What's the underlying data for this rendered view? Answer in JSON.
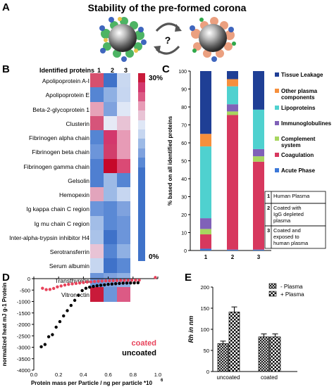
{
  "panel_a": {
    "letter": "A",
    "title": "Stability of the pre-formed corona",
    "question_mark": "?"
  },
  "panel_b": {
    "letter": "B",
    "header": "Identified proteins",
    "columns": [
      "1",
      "2",
      "3"
    ],
    "scale_top": "30%",
    "scale_bottom": "0%",
    "proteins": [
      "Apolipoprotein A-I",
      "Apolipoprotein E",
      "Beta-2-glycoprotein 1",
      "Clusterin",
      "Fibrinogen alpha chain",
      "Fibrinogen beta chain",
      "Fibrinogen gamma chain",
      "Gelsolin",
      "Hemopexin",
      "Ig kappa chain C region",
      "Ig mu chain C region",
      "Inter-alpha-trypsin inhibitor H4",
      "Serotransferrin",
      "Serum albumin",
      "Transthyretin",
      "Vitronectin"
    ],
    "heat_colors": [
      [
        "#d6506e",
        "#3f72c9",
        "#c9d8f0"
      ],
      [
        "#5585d3",
        "#8fb0e3",
        "#c6d6f0"
      ],
      [
        "#e6a2b8",
        "#7fa2de",
        "#dfe7f6"
      ],
      [
        "#d6547a",
        "#e6eaf6",
        "#e8c3d5"
      ],
      [
        "#5585d3",
        "#d3386d",
        "#e79bb6"
      ],
      [
        "#6c95da",
        "#d23e6c",
        "#e79bb6"
      ],
      [
        "#4f7fd1",
        "#c6082a",
        "#da4a75"
      ],
      [
        "#4f7fd1",
        "#9dbae6",
        "#5585d3"
      ],
      [
        "#e2a4bc",
        "#9dbae6",
        "#c6d6f0"
      ],
      [
        "#6c95da",
        "#5a89d5",
        "#7fa2de"
      ],
      [
        "#a2bde7",
        "#5a89d5",
        "#6c95da"
      ],
      [
        "#aac3e9",
        "#3f72c9",
        "#6c95da"
      ],
      [
        "#e8c3d5",
        "#5585d3",
        "#8fb0e3"
      ],
      [
        "#c6d6f0",
        "#3f72c9",
        "#5a89d5"
      ],
      [
        "#6c95da",
        "#7fa2de",
        "#8fb0e3"
      ],
      [
        "#c91a3a",
        "#6c95da",
        "#dc5a85"
      ]
    ]
  },
  "chart_data": [
    {
      "panel": "C",
      "type": "bar",
      "stacked": true,
      "ylabel": "% based on all identified proteins",
      "ylim": [
        0,
        100
      ],
      "yticks": [
        0,
        10,
        20,
        30,
        40,
        50,
        60,
        70,
        80,
        90,
        100
      ],
      "categories": [
        "1",
        "2",
        "3"
      ],
      "series": [
        {
          "name": "Acute Phase",
          "color": "#3c78d8",
          "values": [
            1,
            0.5,
            0.5
          ]
        },
        {
          "name": "Coagulation",
          "color": "#d7385e",
          "values": [
            8,
            75,
            49
          ]
        },
        {
          "name": "Complement system",
          "color": "#a7d65f",
          "values": [
            3,
            2,
            3
          ]
        },
        {
          "name": "Immunoglobulins",
          "color": "#8061b8",
          "values": [
            6,
            4,
            4
          ]
        },
        {
          "name": "Lipoproteins",
          "color": "#4fd1cf",
          "values": [
            40,
            10,
            22
          ]
        },
        {
          "name": "Other plasma components",
          "color": "#f68f3c",
          "values": [
            7,
            4,
            0
          ]
        },
        {
          "name": "Tissue Leakage",
          "color": "#1f3f95",
          "values": [
            35,
            4.5,
            21.5
          ]
        }
      ],
      "legend_position": "right",
      "legend_labels": [
        "Tissue Leakage",
        "Other plasma components",
        "Lipoproteins",
        "Immunoglobulines",
        "Complement system",
        "Coagulation",
        "Acute Phase"
      ],
      "key": [
        {
          "num": "1",
          "text": "Human Plasma"
        },
        {
          "num": "2",
          "text": "Coated with IgG depleted plasma"
        },
        {
          "num": "3",
          "text": "Coated and exposed to human plasma"
        }
      ]
    },
    {
      "panel": "D",
      "type": "scatter",
      "xlabel": "Protein mass per Particle / ng per particle *10",
      "xlabel_exponent": "6",
      "ylabel": "normalized heat mJ g-1 Protein",
      "xlim": [
        0,
        1.0
      ],
      "ylim": [
        -4000,
        0
      ],
      "xticks": [
        0.0,
        0.2,
        0.4,
        0.6,
        0.8,
        1.0
      ],
      "yticks": [
        0,
        -500,
        -1000,
        -1500,
        -2000,
        -2500,
        -3000,
        -3500,
        -4000
      ],
      "series": [
        {
          "name": "coated",
          "color": "#e8435b",
          "points": [
            [
              0.07,
              -420
            ],
            [
              0.1,
              -480
            ],
            [
              0.13,
              -470
            ],
            [
              0.16,
              -430
            ],
            [
              0.19,
              -360
            ],
            [
              0.22,
              -320
            ],
            [
              0.25,
              -280
            ],
            [
              0.28,
              -250
            ],
            [
              0.31,
              -230
            ],
            [
              0.34,
              -210
            ],
            [
              0.37,
              -190
            ],
            [
              0.4,
              -170
            ],
            [
              0.43,
              -150
            ],
            [
              0.46,
              -140
            ],
            [
              0.49,
              -125
            ],
            [
              0.52,
              -115
            ],
            [
              0.55,
              -105
            ],
            [
              0.58,
              -100
            ],
            [
              0.61,
              -95
            ],
            [
              0.64,
              -90
            ],
            [
              0.67,
              -85
            ],
            [
              0.7,
              -80
            ],
            [
              0.73,
              -78
            ],
            [
              0.76,
              -75
            ],
            [
              0.79,
              -72
            ],
            [
              0.82,
              -70
            ],
            [
              0.85,
              -68
            ],
            [
              0.98,
              50
            ]
          ]
        },
        {
          "name": "uncoated",
          "color": "#000000",
          "points": [
            [
              0.06,
              -2980
            ],
            [
              0.09,
              -2880
            ],
            [
              0.12,
              -2540
            ],
            [
              0.15,
              -2450
            ],
            [
              0.18,
              -2120
            ],
            [
              0.21,
              -1880
            ],
            [
              0.24,
              -1630
            ],
            [
              0.27,
              -1400
            ],
            [
              0.3,
              -1170
            ],
            [
              0.33,
              -950
            ],
            [
              0.36,
              -720
            ],
            [
              0.39,
              -520
            ],
            [
              0.42,
              -420
            ],
            [
              0.45,
              -370
            ],
            [
              0.48,
              -340
            ],
            [
              0.51,
              -310
            ],
            [
              0.54,
              -290
            ],
            [
              0.57,
              -270
            ],
            [
              0.6,
              -250
            ],
            [
              0.63,
              -235
            ],
            [
              0.66,
              -220
            ],
            [
              0.69,
              -210
            ],
            [
              0.72,
              -200
            ],
            [
              0.75,
              -195
            ],
            [
              0.78,
              -190
            ],
            [
              0.81,
              -185
            ],
            [
              0.84,
              -180
            ]
          ]
        }
      ]
    },
    {
      "panel": "E",
      "type": "bar",
      "ylabel": "Rh in nm",
      "ylim": [
        0,
        200
      ],
      "yticks": [
        0,
        50,
        100,
        150,
        200
      ],
      "categories": [
        "uncoated",
        "coated"
      ],
      "series": [
        {
          "name": "- Plasma",
          "values": [
            66,
            82
          ],
          "errors": [
            6,
            7
          ]
        },
        {
          "name": "+ Plasma",
          "values": [
            141,
            82
          ],
          "errors": [
            12,
            7
          ]
        }
      ],
      "legend_position": "top-right"
    }
  ],
  "panel_d_letter": "D",
  "panel_e_letter": "E",
  "panel_c_letter": "C"
}
